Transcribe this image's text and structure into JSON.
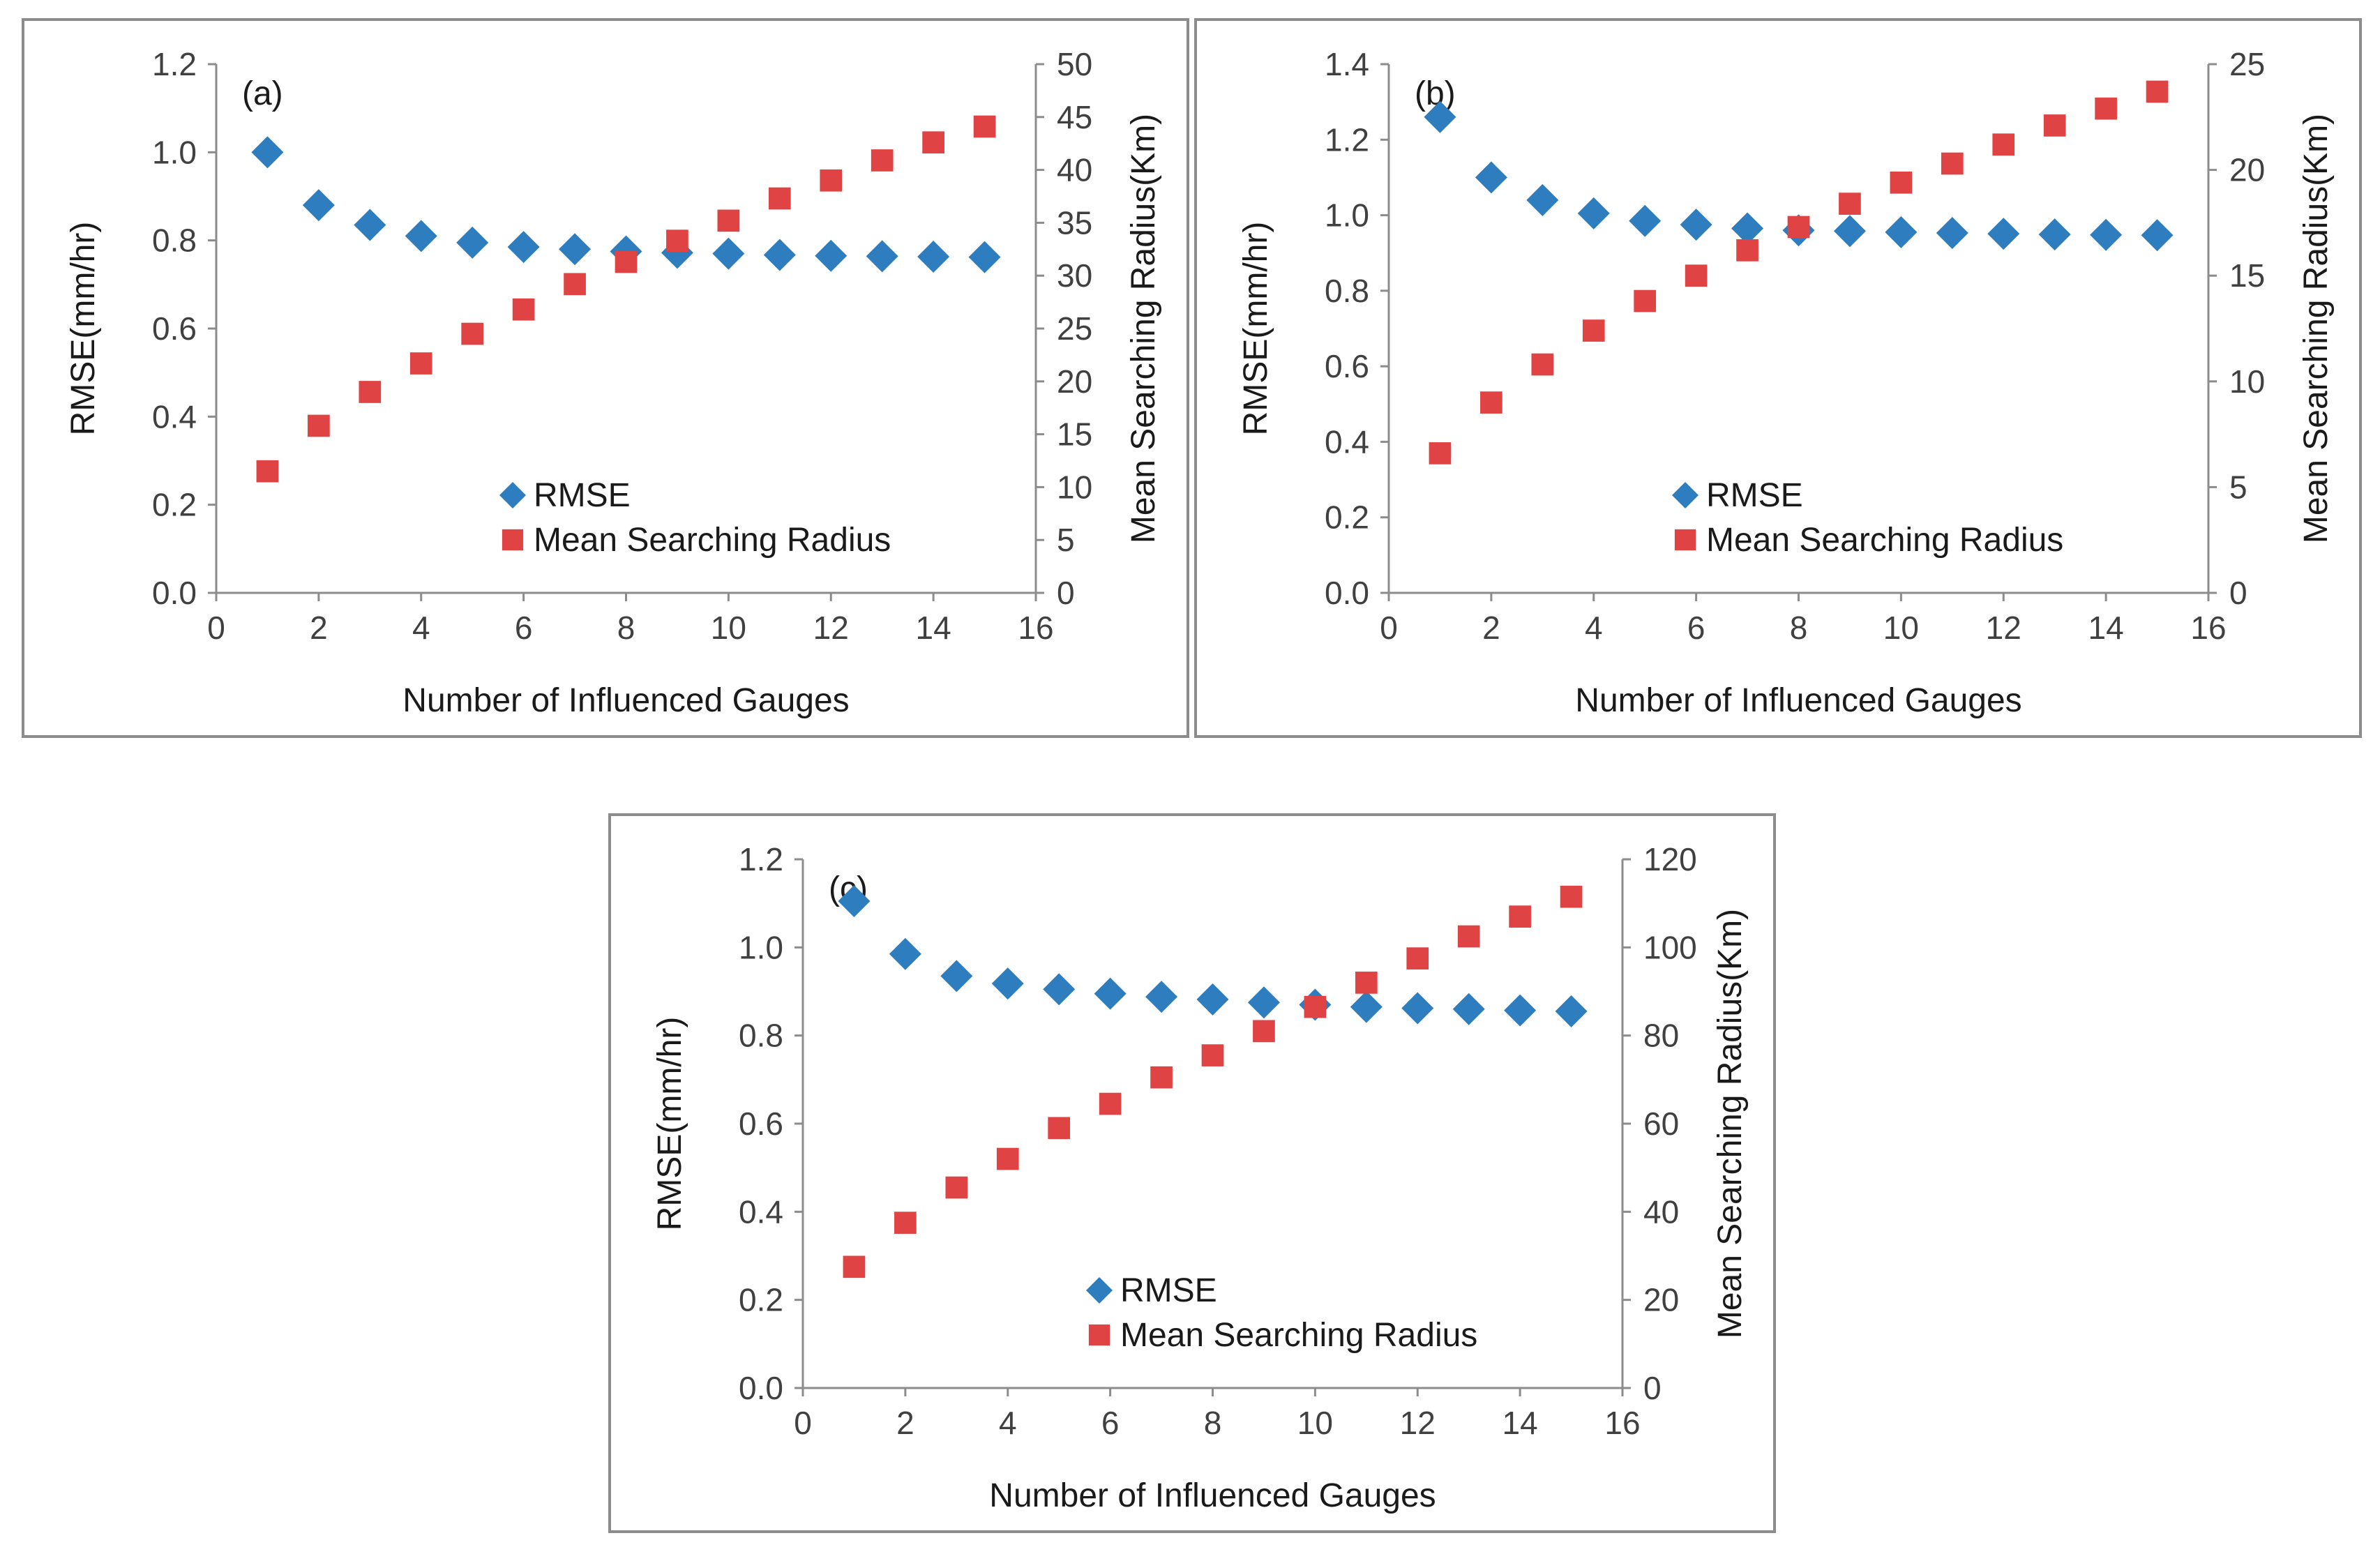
{
  "chart_data": [
    {
      "type": "scatter",
      "panel_label": "(a)",
      "xlabel": "Number of Influenced Gauges",
      "ylabel": "RMSE(mm/hr)",
      "y2label": "Mean Searching Radius(Km)",
      "xlim": [
        0,
        16
      ],
      "x_ticks": [
        "0",
        "2",
        "4",
        "6",
        "8",
        "10",
        "12",
        "14",
        "16"
      ],
      "ylim": [
        0,
        1.2
      ],
      "y_ticks": [
        "0.0",
        "0.2",
        "0.4",
        "0.6",
        "0.8",
        "1.0",
        "1.2"
      ],
      "y2lim": [
        0,
        50
      ],
      "y2_ticks": [
        "0",
        "5",
        "10",
        "15",
        "20",
        "25",
        "30",
        "35",
        "40",
        "45",
        "50"
      ],
      "legend_position": "center",
      "series": [
        {
          "name": "RMSE",
          "axis": "left",
          "marker": "diamond",
          "color": "#2e7dbf",
          "x": [
            1,
            2,
            3,
            4,
            5,
            6,
            7,
            8,
            9,
            10,
            11,
            12,
            13,
            14,
            15
          ],
          "values": [
            1.0,
            0.88,
            0.835,
            0.81,
            0.795,
            0.785,
            0.78,
            0.775,
            0.772,
            0.77,
            0.767,
            0.765,
            0.764,
            0.763,
            0.762
          ]
        },
        {
          "name": "Mean Searching Radius",
          "axis": "right",
          "marker": "square",
          "color": "#e04343",
          "x": [
            1,
            2,
            3,
            4,
            5,
            6,
            7,
            8,
            9,
            10,
            11,
            12,
            13,
            14,
            15
          ],
          "values": [
            11.5,
            15.8,
            19.0,
            21.7,
            24.5,
            26.8,
            29.2,
            31.3,
            33.3,
            35.2,
            37.3,
            39.0,
            40.9,
            42.6,
            44.1
          ]
        }
      ]
    },
    {
      "type": "scatter",
      "panel_label": "(b)",
      "xlabel": "Number of Influenced Gauges",
      "ylabel": "RMSE(mm/hr)",
      "y2label": "Mean Searching Radius(Km)",
      "xlim": [
        0,
        16
      ],
      "x_ticks": [
        "0",
        "2",
        "4",
        "6",
        "8",
        "10",
        "12",
        "14",
        "16"
      ],
      "ylim": [
        0,
        1.4
      ],
      "y_ticks": [
        "0.0",
        "0.2",
        "0.4",
        "0.6",
        "0.8",
        "1.0",
        "1.2",
        "1.4"
      ],
      "y2lim": [
        0,
        25
      ],
      "y2_ticks": [
        "0",
        "5",
        "10",
        "15",
        "20",
        "25"
      ],
      "legend_position": "center",
      "series": [
        {
          "name": "RMSE",
          "axis": "left",
          "marker": "diamond",
          "color": "#2e7dbf",
          "x": [
            1,
            2,
            3,
            4,
            5,
            6,
            7,
            8,
            9,
            10,
            11,
            12,
            13,
            14,
            15
          ],
          "values": [
            1.26,
            1.1,
            1.04,
            1.005,
            0.985,
            0.975,
            0.965,
            0.96,
            0.958,
            0.955,
            0.953,
            0.951,
            0.949,
            0.948,
            0.947
          ]
        },
        {
          "name": "Mean Searching Radius",
          "axis": "right",
          "marker": "square",
          "color": "#e04343",
          "x": [
            1,
            2,
            3,
            4,
            5,
            6,
            7,
            8,
            9,
            10,
            11,
            12,
            13,
            14,
            15
          ],
          "values": [
            6.6,
            9.0,
            10.8,
            12.4,
            13.8,
            15.0,
            16.2,
            17.3,
            18.4,
            19.4,
            20.3,
            21.2,
            22.1,
            22.9,
            23.7
          ]
        }
      ]
    },
    {
      "type": "scatter",
      "panel_label": "(c)",
      "xlabel": "Number of Influenced Gauges",
      "ylabel": "RMSE(mm/hr)",
      "y2label": "Mean Searching Radius(Km)",
      "xlim": [
        0,
        16
      ],
      "x_ticks": [
        "0",
        "2",
        "4",
        "6",
        "8",
        "10",
        "12",
        "14",
        "16"
      ],
      "ylim": [
        0,
        1.2
      ],
      "y_ticks": [
        "0.0",
        "0.2",
        "0.4",
        "0.6",
        "0.8",
        "1.0",
        "1.2"
      ],
      "y2lim": [
        0,
        120
      ],
      "y2_ticks": [
        "0",
        "20",
        "40",
        "60",
        "80",
        "100",
        "120"
      ],
      "legend_position": "center",
      "series": [
        {
          "name": "RMSE",
          "axis": "left",
          "marker": "diamond",
          "color": "#2e7dbf",
          "x": [
            1,
            2,
            3,
            4,
            5,
            6,
            7,
            8,
            9,
            10,
            11,
            12,
            13,
            14,
            15
          ],
          "values": [
            1.105,
            0.985,
            0.935,
            0.918,
            0.905,
            0.895,
            0.888,
            0.882,
            0.875,
            0.87,
            0.865,
            0.862,
            0.86,
            0.857,
            0.855
          ]
        },
        {
          "name": "Mean Searching Radius",
          "axis": "right",
          "marker": "square",
          "color": "#e04343",
          "x": [
            1,
            2,
            3,
            4,
            5,
            6,
            7,
            8,
            9,
            10,
            11,
            12,
            13,
            14,
            15
          ],
          "values": [
            27.5,
            37.5,
            45.5,
            52,
            59,
            64.5,
            70.5,
            75.5,
            81,
            86.5,
            92,
            97.5,
            102.5,
            107,
            111.5
          ]
        }
      ]
    }
  ]
}
